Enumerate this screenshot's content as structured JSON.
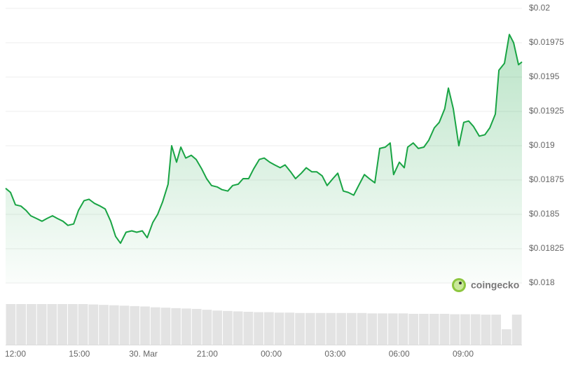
{
  "chart_data": [
    {
      "type": "area",
      "color": "#19a444",
      "watermark": "coingecko",
      "x": [
        -0.46,
        -0.23,
        0,
        0.26,
        0.49,
        0.72,
        0.99,
        1.25,
        1.48,
        1.74,
        1.97,
        2.23,
        2.46,
        2.73,
        2.96,
        3.22,
        3.45,
        3.71,
        3.98,
        4.21,
        4.47,
        4.7,
        4.93,
        5.19,
        5.46,
        5.69,
        5.95,
        6.18,
        6.44,
        6.67,
        6.9,
        7.16,
        7.33,
        7.56,
        7.76,
        7.99,
        8.25,
        8.48,
        8.74,
        8.97,
        9.2,
        9.46,
        9.69,
        9.96,
        10.19,
        10.45,
        10.68,
        10.94,
        11.17,
        11.44,
        11.67,
        11.93,
        12.16,
        12.42,
        12.65,
        12.91,
        13.14,
        13.41,
        13.64,
        13.9,
        14.13,
        14.39,
        14.62,
        14.89,
        15.12,
        15.38,
        15.61,
        15.87,
        16.1,
        16.37,
        16.6,
        16.86,
        17.09,
        17.35,
        17.58,
        17.74,
        18.01,
        18.24,
        18.4,
        18.66,
        18.9,
        19.16,
        19.39,
        19.65,
        19.88,
        20.14,
        20.31,
        20.54,
        20.8,
        21.03,
        21.26,
        21.49,
        21.76,
        22.02,
        22.25,
        22.51,
        22.68,
        22.94,
        23.17,
        23.37,
        23.6,
        23.76
      ],
      "values": [
        0.01869,
        0.01866,
        0.01857,
        0.01856,
        0.01853,
        0.01849,
        0.01847,
        0.01845,
        0.01847,
        0.01849,
        0.01847,
        0.01845,
        0.01842,
        0.01843,
        0.01853,
        0.0186,
        0.01861,
        0.01858,
        0.01856,
        0.01854,
        0.01845,
        0.01834,
        0.01829,
        0.01837,
        0.01838,
        0.01837,
        0.01838,
        0.01833,
        0.01844,
        0.0185,
        0.01859,
        0.01872,
        0.019,
        0.01888,
        0.01899,
        0.01891,
        0.01893,
        0.0189,
        0.01883,
        0.01876,
        0.01871,
        0.0187,
        0.01868,
        0.01867,
        0.01871,
        0.01872,
        0.01876,
        0.01876,
        0.01883,
        0.0189,
        0.01891,
        0.01888,
        0.01886,
        0.01884,
        0.01886,
        0.01881,
        0.01876,
        0.0188,
        0.01884,
        0.01881,
        0.01881,
        0.01878,
        0.01871,
        0.01876,
        0.0188,
        0.01867,
        0.01866,
        0.01864,
        0.01871,
        0.01879,
        0.01876,
        0.01873,
        0.01898,
        0.01899,
        0.01902,
        0.01879,
        0.01888,
        0.01884,
        0.01899,
        0.01902,
        0.01898,
        0.01899,
        0.01904,
        0.01913,
        0.01917,
        0.01927,
        0.01942,
        0.01927,
        0.019,
        0.01917,
        0.01918,
        0.01914,
        0.01907,
        0.01908,
        0.01913,
        0.01923,
        0.01955,
        0.0196,
        0.01981,
        0.01975,
        0.01959,
        0.01961
      ],
      "xlim": [
        -0.46,
        23.76
      ],
      "ylim": [
        0.018,
        0.02
      ],
      "xticks": [
        {
          "value": 0,
          "label": "12:00"
        },
        {
          "value": 3,
          "label": "15:00"
        },
        {
          "value": 6,
          "label": "30. Mar"
        },
        {
          "value": 9,
          "label": "21:00"
        },
        {
          "value": 12,
          "label": "00:00"
        },
        {
          "value": 15,
          "label": "03:00"
        },
        {
          "value": 18,
          "label": "06:00"
        },
        {
          "value": 21,
          "label": "09:00"
        }
      ],
      "yticks": [
        {
          "value": 0.018,
          "label": "$0.018"
        },
        {
          "value": 0.01825,
          "label": "$0.01825"
        },
        {
          "value": 0.0185,
          "label": "$0.0185"
        },
        {
          "value": 0.01875,
          "label": "$0.01875"
        },
        {
          "value": 0.019,
          "label": "$0.019"
        },
        {
          "value": 0.01925,
          "label": "$0.01925"
        },
        {
          "value": 0.0195,
          "label": "$0.0195"
        },
        {
          "value": 0.01975,
          "label": "$0.01975"
        },
        {
          "value": 0.02,
          "label": "$0.02"
        }
      ],
      "grid": true
    },
    {
      "type": "bar",
      "color": "#e3e3e3",
      "ylim": [
        0,
        100
      ],
      "values": [
        100,
        100,
        100,
        100,
        100,
        100,
        100,
        100,
        99,
        98,
        97,
        96,
        95,
        94,
        92,
        91,
        90,
        89,
        88,
        86,
        84,
        83,
        82,
        81,
        80,
        80,
        79,
        79,
        78,
        78,
        78,
        78,
        78,
        78,
        78,
        77,
        77,
        77,
        77,
        76,
        76,
        76,
        76,
        75,
        75,
        75,
        74,
        74,
        38,
        74
      ]
    }
  ]
}
